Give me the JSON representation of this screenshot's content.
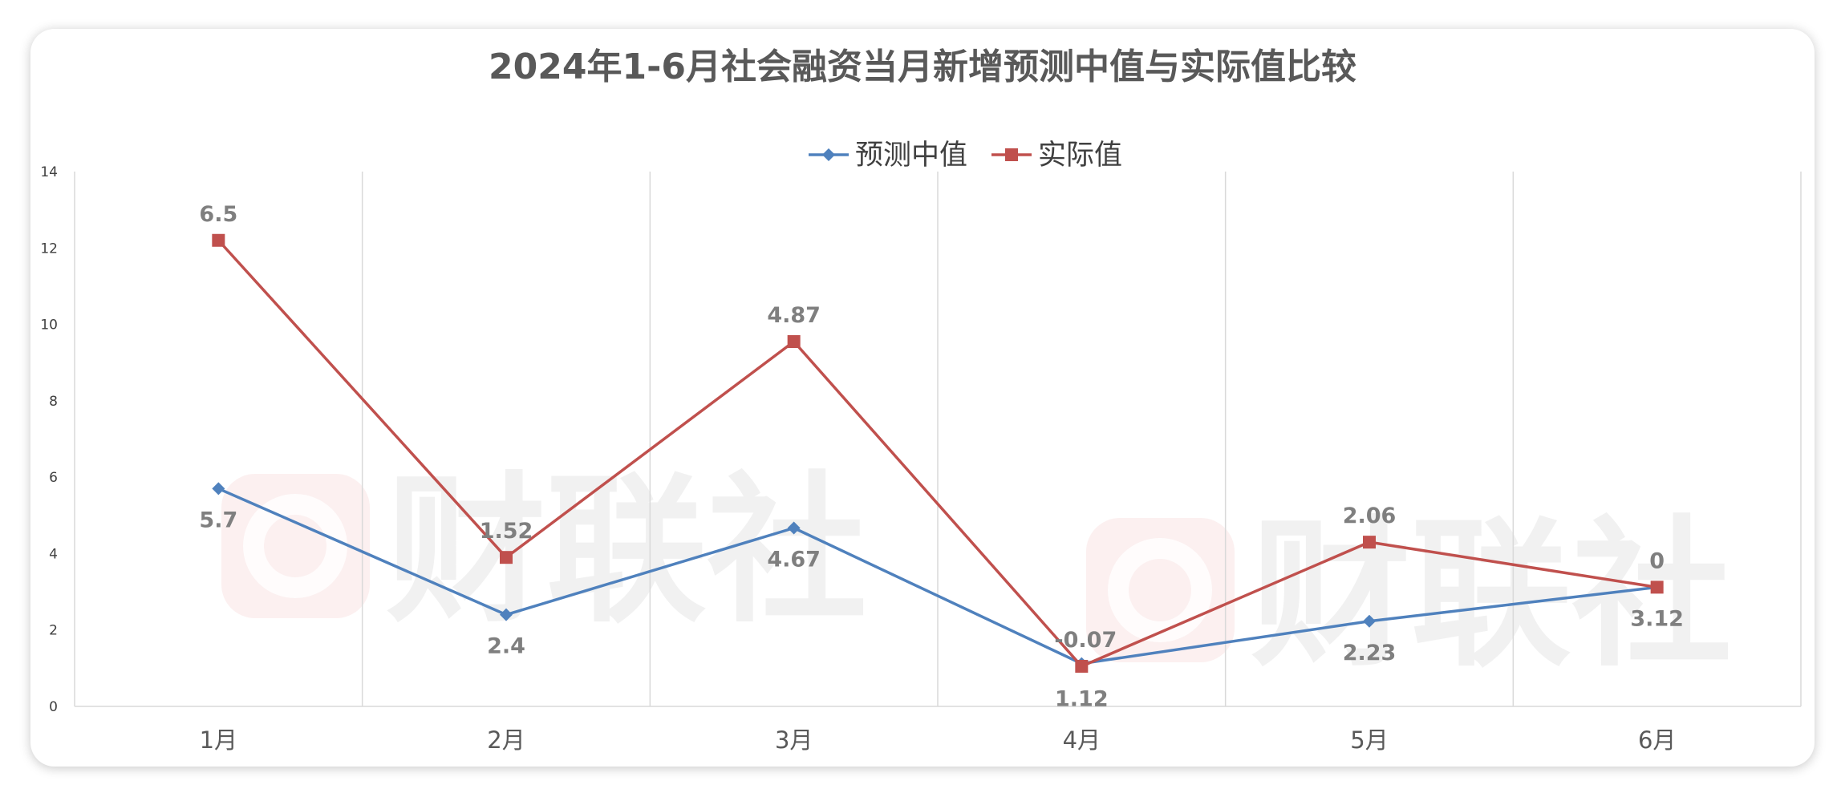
{
  "chart_data": {
    "type": "line",
    "title": "2024年1-6月社会融资当月新增预测中值与实际值比较",
    "categories": [
      "1月",
      "2月",
      "3月",
      "4月",
      "5月",
      "6月"
    ],
    "ylim": [
      0,
      14
    ],
    "yticks": [
      "0",
      "2",
      "4",
      "6",
      "8",
      "10",
      "12",
      "14"
    ],
    "grid": "vertical",
    "legend_position": "top-center",
    "series": [
      {
        "name": "预测中值",
        "color": "#4F81BD",
        "marker": "diamond",
        "values": [
          5.7,
          2.4,
          4.67,
          1.12,
          2.23,
          3.12
        ],
        "labels": [
          "5.7",
          "2.4",
          "4.67",
          "1.12",
          "2.23",
          "3.12"
        ]
      },
      {
        "name": "实际值",
        "color": "#C0504D",
        "marker": "square",
        "values": [
          12.2,
          3.9,
          9.55,
          1.05,
          4.3,
          3.12
        ],
        "labels": [
          "6.5",
          "1.52",
          "4.87",
          "-0.07",
          "2.06",
          "0"
        ]
      }
    ]
  },
  "watermark": {
    "text": "财联社",
    "icon": "cls-logo-icon"
  }
}
